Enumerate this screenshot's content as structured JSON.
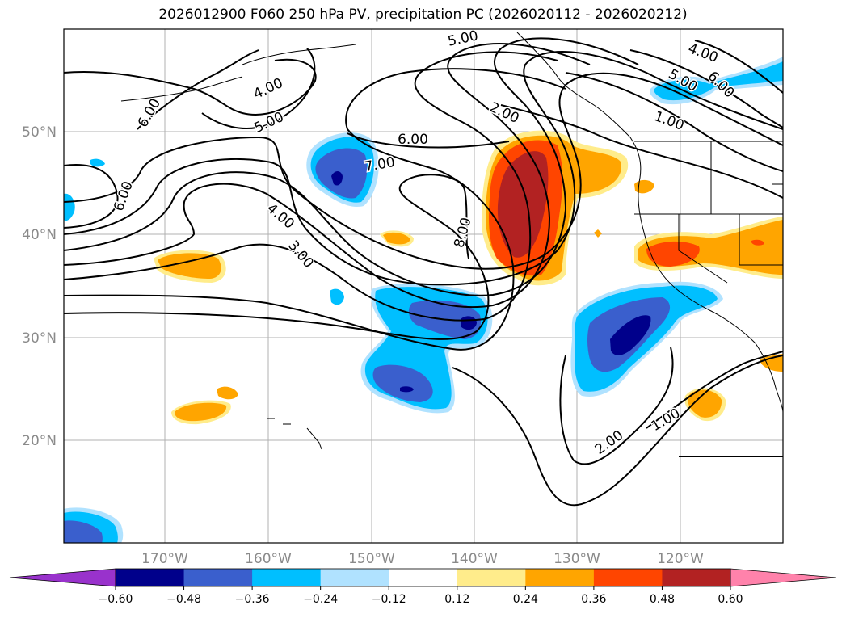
{
  "title": "2026012900 F060 250 hPa PV, precipitation PC (2026020112 - 2026020212)",
  "map": {
    "lat_ticks": [
      "50°N",
      "40°N",
      "30°N",
      "20°N"
    ],
    "lon_ticks": [
      "170°W",
      "160°W",
      "150°W",
      "140°W",
      "130°W",
      "120°W"
    ],
    "gridlines": true
  },
  "pv_contour_labels": [
    "5.00",
    "4.00",
    "5.00",
    "6.00",
    "2.00",
    "6.00",
    "4.00",
    "5.00",
    "6.00",
    "1.00",
    "7.00",
    "8.00",
    "4.00",
    "3.00",
    "6.00",
    "2.00",
    "1.00"
  ],
  "colorbar": {
    "labels": [
      "−0.60",
      "−0.48",
      "−0.36",
      "−0.24",
      "−0.12",
      "0.12",
      "0.24",
      "0.36",
      "0.48",
      "0.60"
    ],
    "colors": [
      "#9932CC",
      "#00008B",
      "#3A5FCD",
      "#00BFFF",
      "#B0E2FF",
      "#FFFFFF",
      "#FFEC8B",
      "#FFA500",
      "#FF4500",
      "#B22222",
      "#FF82AB"
    ]
  }
}
